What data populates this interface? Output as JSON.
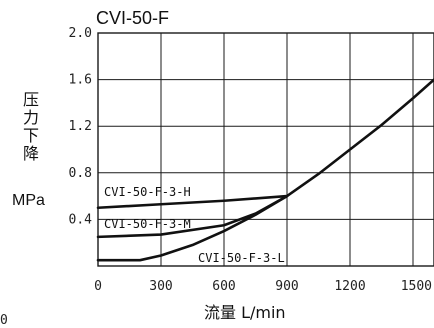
{
  "chart_data": {
    "type": "line",
    "title": "CVI-50-F",
    "ylabel_chars": [
      "压",
      "力",
      "下",
      "降"
    ],
    "yunit": "MPa",
    "xlabel": "流量 L/min",
    "xlim": [
      0,
      1600
    ],
    "ylim": [
      0,
      2.0
    ],
    "xticks": [
      0,
      300,
      600,
      900,
      1200,
      1500
    ],
    "xtick_labels": [
      "0",
      "300",
      "600",
      "900",
      "1200",
      "1500"
    ],
    "yticks": [
      0.4,
      0.8,
      1.2,
      1.6,
      2.0
    ],
    "ytick_labels": [
      "0.4",
      "0.8",
      "1.2",
      "1.6",
      "2.0"
    ],
    "stray_label": "0",
    "grid": true,
    "series": [
      {
        "name": "CVI-50-F-3-H",
        "points": [
          [
            0,
            0.5
          ],
          [
            300,
            0.53
          ],
          [
            600,
            0.56
          ],
          [
            900,
            0.6
          ]
        ]
      },
      {
        "name": "CVI-50-F-3-M",
        "points": [
          [
            0,
            0.25
          ],
          [
            300,
            0.27
          ],
          [
            600,
            0.35
          ],
          [
            750,
            0.45
          ],
          [
            900,
            0.6
          ]
        ]
      },
      {
        "name": "CVI-50-F-3-L",
        "points": [
          [
            0,
            0.05
          ],
          [
            200,
            0.05
          ],
          [
            300,
            0.09
          ],
          [
            450,
            0.18
          ],
          [
            600,
            0.3
          ],
          [
            750,
            0.44
          ],
          [
            900,
            0.6
          ],
          [
            1050,
            0.79
          ],
          [
            1200,
            1.0
          ],
          [
            1350,
            1.21
          ],
          [
            1500,
            1.44
          ],
          [
            1600,
            1.6
          ]
        ]
      }
    ]
  }
}
